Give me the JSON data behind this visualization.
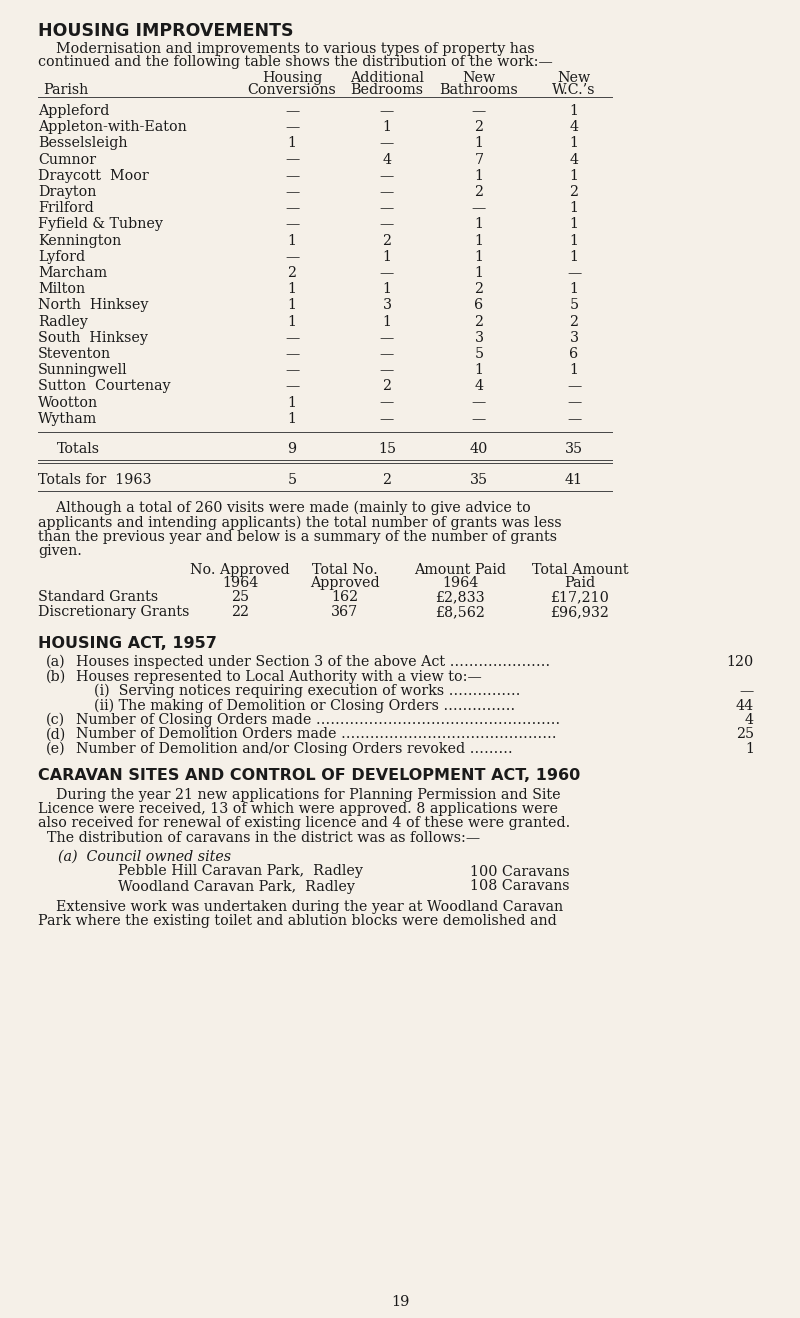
{
  "bg_color": "#f5f0e8",
  "text_color": "#1a1a1a",
  "title": "HOUSING IMPROVEMENTS",
  "intro_line1": "    Modernisation and improvements to various types of property has",
  "intro_line2": "continued and the following table shows the distribution of the work:—",
  "col_hdr1": [
    "Housing",
    "Additional",
    "New",
    "New"
  ],
  "col_hdr2": [
    "Conversions",
    "Bedrooms",
    "Bathrooms",
    "W.C.’s"
  ],
  "parish_label": "Parish",
  "table_rows": [
    [
      "Appleford",
      "—",
      "—",
      "—",
      "1"
    ],
    [
      "Appleton-with-Eaton",
      "—",
      "1",
      "2",
      "4"
    ],
    [
      "Besselsleigh",
      "1",
      "—",
      "1",
      "1"
    ],
    [
      "Cumnor",
      "—",
      "4",
      "7",
      "4"
    ],
    [
      "Draycott  Moor",
      "—",
      "—",
      "1",
      "1"
    ],
    [
      "Drayton",
      "—",
      "—",
      "2",
      "2"
    ],
    [
      "Frilford",
      "—",
      "—",
      "—",
      "1"
    ],
    [
      "Fyfield & Tubney",
      "—",
      "—",
      "1",
      "1"
    ],
    [
      "Kennington",
      "1",
      "2",
      "1",
      "1"
    ],
    [
      "Lyford",
      "—",
      "1",
      "1",
      "1"
    ],
    [
      "Marcham",
      "2",
      "—",
      "1",
      "—"
    ],
    [
      "Milton",
      "1",
      "1",
      "2",
      "1"
    ],
    [
      "North  Hinksey",
      "1",
      "3",
      "6",
      "5"
    ],
    [
      "Radley",
      "1",
      "1",
      "2",
      "2"
    ],
    [
      "South  Hinksey",
      "—",
      "—",
      "3",
      "3"
    ],
    [
      "Steventon",
      "—",
      "—",
      "5",
      "6"
    ],
    [
      "Sunningwell",
      "—",
      "—",
      "1",
      "1"
    ],
    [
      "Sutton  Courtenay",
      "—",
      "2",
      "4",
      "—"
    ],
    [
      "Wootton",
      "1",
      "—",
      "—",
      "—"
    ],
    [
      "Wytham",
      "1",
      "—",
      "—",
      "—"
    ]
  ],
  "totals_row": [
    "Totals",
    "9",
    "15",
    "40",
    "35"
  ],
  "totals_1963_row": [
    "Totals for  1963",
    "5",
    "2",
    "35",
    "41"
  ],
  "grants_para": [
    "    Although a total of 260 visits were made (mainly to give advice to",
    "applicants and intending applicants) the total number of grants was less",
    "than the previous year and below is a summary of the number of grants",
    "given."
  ],
  "grants_hdr1": [
    "No. Approved",
    "Total No.",
    "Amount Paid",
    "Total Amount"
  ],
  "grants_hdr2": [
    "1964",
    "Approved",
    "1964",
    "Paid"
  ],
  "grants_rows": [
    [
      "Standard Grants",
      "25",
      "162",
      "£2,833",
      "£17,210"
    ],
    [
      "Discretionary Grants",
      "22",
      "367",
      "£8,562",
      "£96,932"
    ]
  ],
  "housing_act_title": "HOUSING ACT, 1957",
  "housing_act_items": [
    [
      "(a)",
      "Houses inspected under Section 3 of the above Act …………………",
      "120"
    ],
    [
      "(b)",
      "Houses represented to Local Authority with a view to:—",
      ""
    ],
    [
      "",
      "    (i)  Serving notices requiring execution of works ……………",
      "—"
    ],
    [
      "",
      "    (ii) The making of Demolition or Closing Orders ……………",
      "44"
    ],
    [
      "(c)",
      "Number of Closing Orders made ……………………………………………",
      "4"
    ],
    [
      "(d)",
      "Number of Demolition Orders made ………………………………………",
      "25"
    ],
    [
      "(e)",
      "Number of Demolition and/or Closing Orders revoked ………",
      "1"
    ]
  ],
  "caravan_title": "CARAVAN SITES AND CONTROL OF DEVELOPMENT ACT, 1960",
  "caravan_para": [
    "    During the year 21 new applications for Planning Permission and Site",
    "Licence were received, 13 of which were approved. 8 applications were",
    "also received for renewal of existing licence and 4 of these were granted.",
    "  The distribution of caravans in the district was as follows:—"
  ],
  "caravan_council": "(a)  Council owned sites",
  "caravan_sites": [
    [
      "Pebble Hill Caravan Park,  Radley",
      "100 Caravans"
    ],
    [
      "Woodland Caravan Park,  Radley",
      "108 Caravans"
    ]
  ],
  "caravan_para2": [
    "    Extensive work was undertaken during the year at Woodland Caravan",
    "Park where the existing toilet and ablution blocks were demolished and"
  ],
  "page_number": "19"
}
